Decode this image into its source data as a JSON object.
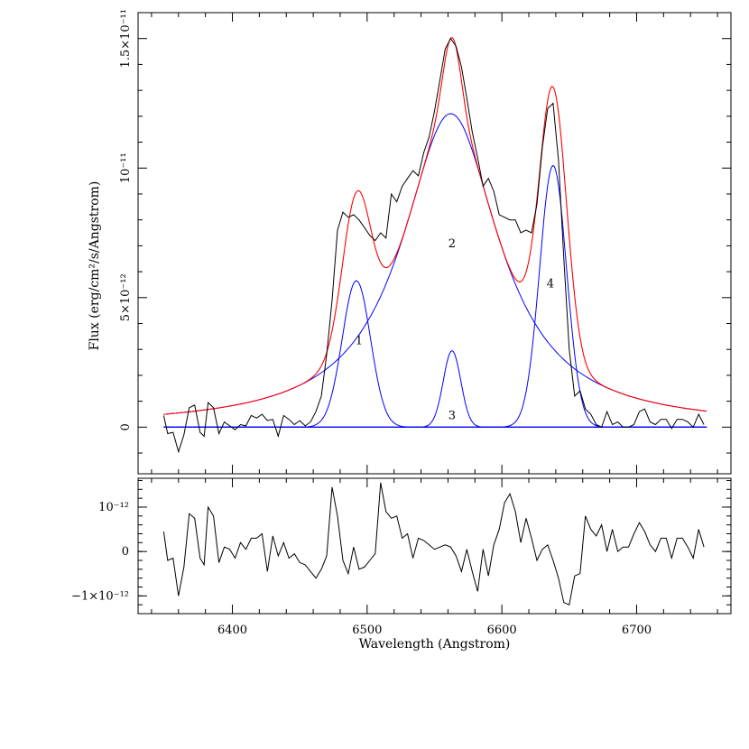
{
  "chart_data": [
    {
      "type": "line",
      "panel": "main",
      "xlabel": "Wavelength (Angstrom)",
      "ylabel": "Flux (erg/cm²/s/Angstrom)",
      "xlim": [
        6330,
        6770
      ],
      "ylim": [
        -1.8e-12,
        1.6e-11
      ],
      "x_ticks": [
        6400,
        6500,
        6600,
        6700
      ],
      "y_ticks": [
        {
          "value": 0,
          "label": "0"
        },
        {
          "value": 5e-12,
          "label": "5×10⁻¹²"
        },
        {
          "value": 1e-11,
          "label": "10⁻¹¹"
        },
        {
          "value": 1.5e-11,
          "label": "1.5×10⁻¹¹"
        }
      ],
      "grid": false,
      "colors": {
        "observed": "#000000",
        "total_fit": "#ff0000",
        "components": "#0000ff"
      },
      "observed": {
        "x": [
          6349,
          6352,
          6356,
          6360,
          6364,
          6368,
          6372,
          6376,
          6379,
          6382,
          6386,
          6390,
          6394,
          6398,
          6402,
          6406,
          6410,
          6414,
          6418,
          6422,
          6426,
          6430,
          6434,
          6438,
          6442,
          6446,
          6450,
          6454,
          6458,
          6462,
          6466,
          6470,
          6474,
          6478,
          6482,
          6486,
          6490,
          6494,
          6498,
          6502,
          6506,
          6510,
          6514,
          6518,
          6522,
          6526,
          6530,
          6534,
          6538,
          6542,
          6546,
          6550,
          6554,
          6558,
          6562,
          6566,
          6570,
          6574,
          6578,
          6582,
          6586,
          6590,
          6594,
          6598,
          6602,
          6606,
          6610,
          6614,
          6618,
          6622,
          6626,
          6630,
          6634,
          6638,
          6642,
          6646,
          6650,
          6654,
          6658,
          6662,
          6666,
          6670,
          6674,
          6678,
          6682,
          6686,
          6690,
          6694,
          6698,
          6702,
          6706,
          6710,
          6714,
          6718,
          6722,
          6726,
          6730,
          6734,
          6738,
          6742,
          6746,
          6750
        ],
        "y": [
          4.5e-13,
          -2.5e-13,
          -2e-13,
          -9.5e-13,
          -3e-13,
          7.5e-13,
          8.5e-13,
          -2e-13,
          -3.5e-13,
          9.5e-13,
          7.5e-13,
          -2.5e-13,
          2e-13,
          5e-14,
          -1e-13,
          1e-13,
          5e-14,
          4.5e-13,
          3.5e-13,
          5e-13,
          2.5e-13,
          3e-13,
          -3.5e-13,
          4.5e-13,
          3e-13,
          1e-13,
          2.5e-13,
          5e-14,
          2e-13,
          6e-13,
          1.2e-12,
          2.8e-12,
          4.9e-12,
          7.6e-12,
          8.3e-12,
          8.1e-12,
          8.2e-12,
          8e-12,
          7.7e-12,
          7.4e-12,
          7.2e-12,
          7.5e-12,
          7.3e-12,
          9e-12,
          8.7e-12,
          9.3e-12,
          9.6e-12,
          9.9e-12,
          9.7e-12,
          1.06e-11,
          1.12e-11,
          1.22e-11,
          1.34e-11,
          1.46e-11,
          1.5e-11,
          1.47e-11,
          1.39e-11,
          1.27e-11,
          1.14e-11,
          1.04e-11,
          9.3e-12,
          9.6e-12,
          9.1e-12,
          8.2e-12,
          8.1e-12,
          8e-12,
          8e-12,
          7.5e-12,
          7.6e-12,
          7.5e-12,
          8.6e-12,
          1.08e-11,
          1.23e-11,
          1.25e-11,
          1.03e-11,
          6.5e-12,
          3e-12,
          1.2e-12,
          1.4e-12,
          7e-13,
          5e-13,
          1e-13,
          0.0,
          6e-13,
          1e-13,
          2e-13,
          0.0,
          0.0,
          1e-13,
          6e-13,
          7e-13,
          2e-13,
          1e-13,
          3e-13,
          3e-13,
          -5e-14,
          3e-13,
          3e-13,
          2e-13,
          0.0,
          5e-13,
          1e-13
        ]
      },
      "components": [
        {
          "label": "1",
          "center": 6492,
          "sigma": 10.5,
          "amplitude": 5.65e-12,
          "label_x": 6494,
          "label_y": 3.2e-12
        },
        {
          "label": "2",
          "center": 6562,
          "gamma": 44,
          "amplitude": 1.21e-11,
          "label_x": 6563,
          "label_y": 6.95e-12
        },
        {
          "label": "3",
          "center": 6563,
          "sigma": 6.5,
          "amplitude": 2.95e-12,
          "label_x": 6563,
          "label_y": 3e-13
        },
        {
          "label": "4",
          "center": 6638,
          "sigma": 10.0,
          "amplitude": 1.01e-11,
          "label_x": 6636,
          "label_y": 5.4e-12
        }
      ]
    },
    {
      "type": "line",
      "panel": "residuals",
      "xlim": [
        6330,
        6770
      ],
      "ylim": [
        -1.4e-12,
        1.65e-12
      ],
      "y_ticks": [
        {
          "value": 1e-12,
          "label": "10⁻¹²"
        },
        {
          "value": 0,
          "label": "0"
        },
        {
          "value": -1e-12,
          "label": "−1×10⁻¹²"
        }
      ],
      "x": [
        6349,
        6352,
        6356,
        6360,
        6364,
        6368,
        6372,
        6376,
        6379,
        6382,
        6386,
        6390,
        6394,
        6398,
        6402,
        6406,
        6410,
        6414,
        6418,
        6422,
        6426,
        6430,
        6434,
        6438,
        6442,
        6446,
        6450,
        6454,
        6458,
        6462,
        6466,
        6470,
        6474,
        6478,
        6482,
        6486,
        6490,
        6494,
        6498,
        6502,
        6506,
        6510,
        6514,
        6518,
        6522,
        6526,
        6530,
        6534,
        6538,
        6542,
        6546,
        6550,
        6554,
        6558,
        6562,
        6566,
        6570,
        6574,
        6578,
        6582,
        6586,
        6590,
        6594,
        6598,
        6602,
        6606,
        6610,
        6614,
        6618,
        6622,
        6626,
        6630,
        6634,
        6638,
        6642,
        6646,
        6650,
        6654,
        6658,
        6662,
        6666,
        6670,
        6674,
        6678,
        6682,
        6686,
        6690,
        6694,
        6698,
        6702,
        6706,
        6710,
        6714,
        6718,
        6722,
        6726,
        6730,
        6734,
        6738,
        6742,
        6746,
        6750
      ],
      "values": [
        4.5e-13,
        -2e-13,
        -1.5e-13,
        -1e-12,
        -3.5e-13,
        8.5e-13,
        7.5e-13,
        -1.5e-13,
        -3e-13,
        1e-12,
        8e-13,
        -2.5e-13,
        1e-13,
        5e-14,
        -1.5e-13,
        2e-13,
        5e-14,
        3e-13,
        3e-13,
        4e-13,
        -4.5e-13,
        3.5e-13,
        -1e-13,
        2e-13,
        -1.5e-13,
        -5e-14,
        -2.5e-13,
        -3e-13,
        -4.5e-13,
        -6e-13,
        -4e-13,
        -1e-13,
        1.45e-12,
        8e-13,
        -2e-13,
        -5e-13,
        1e-13,
        -4e-13,
        -3.5e-13,
        -2e-13,
        -5e-14,
        1.55e-12,
        9e-13,
        7.5e-13,
        8e-13,
        3e-13,
        4e-13,
        -1.5e-13,
        3e-13,
        2.5e-13,
        1.5e-13,
        5e-14,
        1e-13,
        1.5e-13,
        1e-13,
        -1e-13,
        -4.5e-13,
        5e-14,
        -4.5e-13,
        -9e-13,
        5e-14,
        -5.5e-13,
        1.5e-13,
        5e-13,
        1.1e-12,
        1.3e-12,
        9e-13,
        2e-13,
        7.5e-13,
        3e-13,
        -2e-13,
        5e-14,
        1.5e-13,
        -2e-13,
        -6e-13,
        -1.15e-12,
        -1.2e-12,
        -5.5e-13,
        -5e-13,
        8e-13,
        5e-13,
        3.5e-13,
        6e-13,
        0.0,
        5e-13,
        0.0,
        1e-13,
        1e-13,
        4e-13,
        6.5e-13,
        4.5e-13,
        1.5e-13,
        0.0,
        3e-13,
        3e-13,
        -1.5e-13,
        3e-13,
        3e-13,
        1e-13,
        -1.5e-13,
        5e-13,
        1e-13
      ]
    }
  ]
}
